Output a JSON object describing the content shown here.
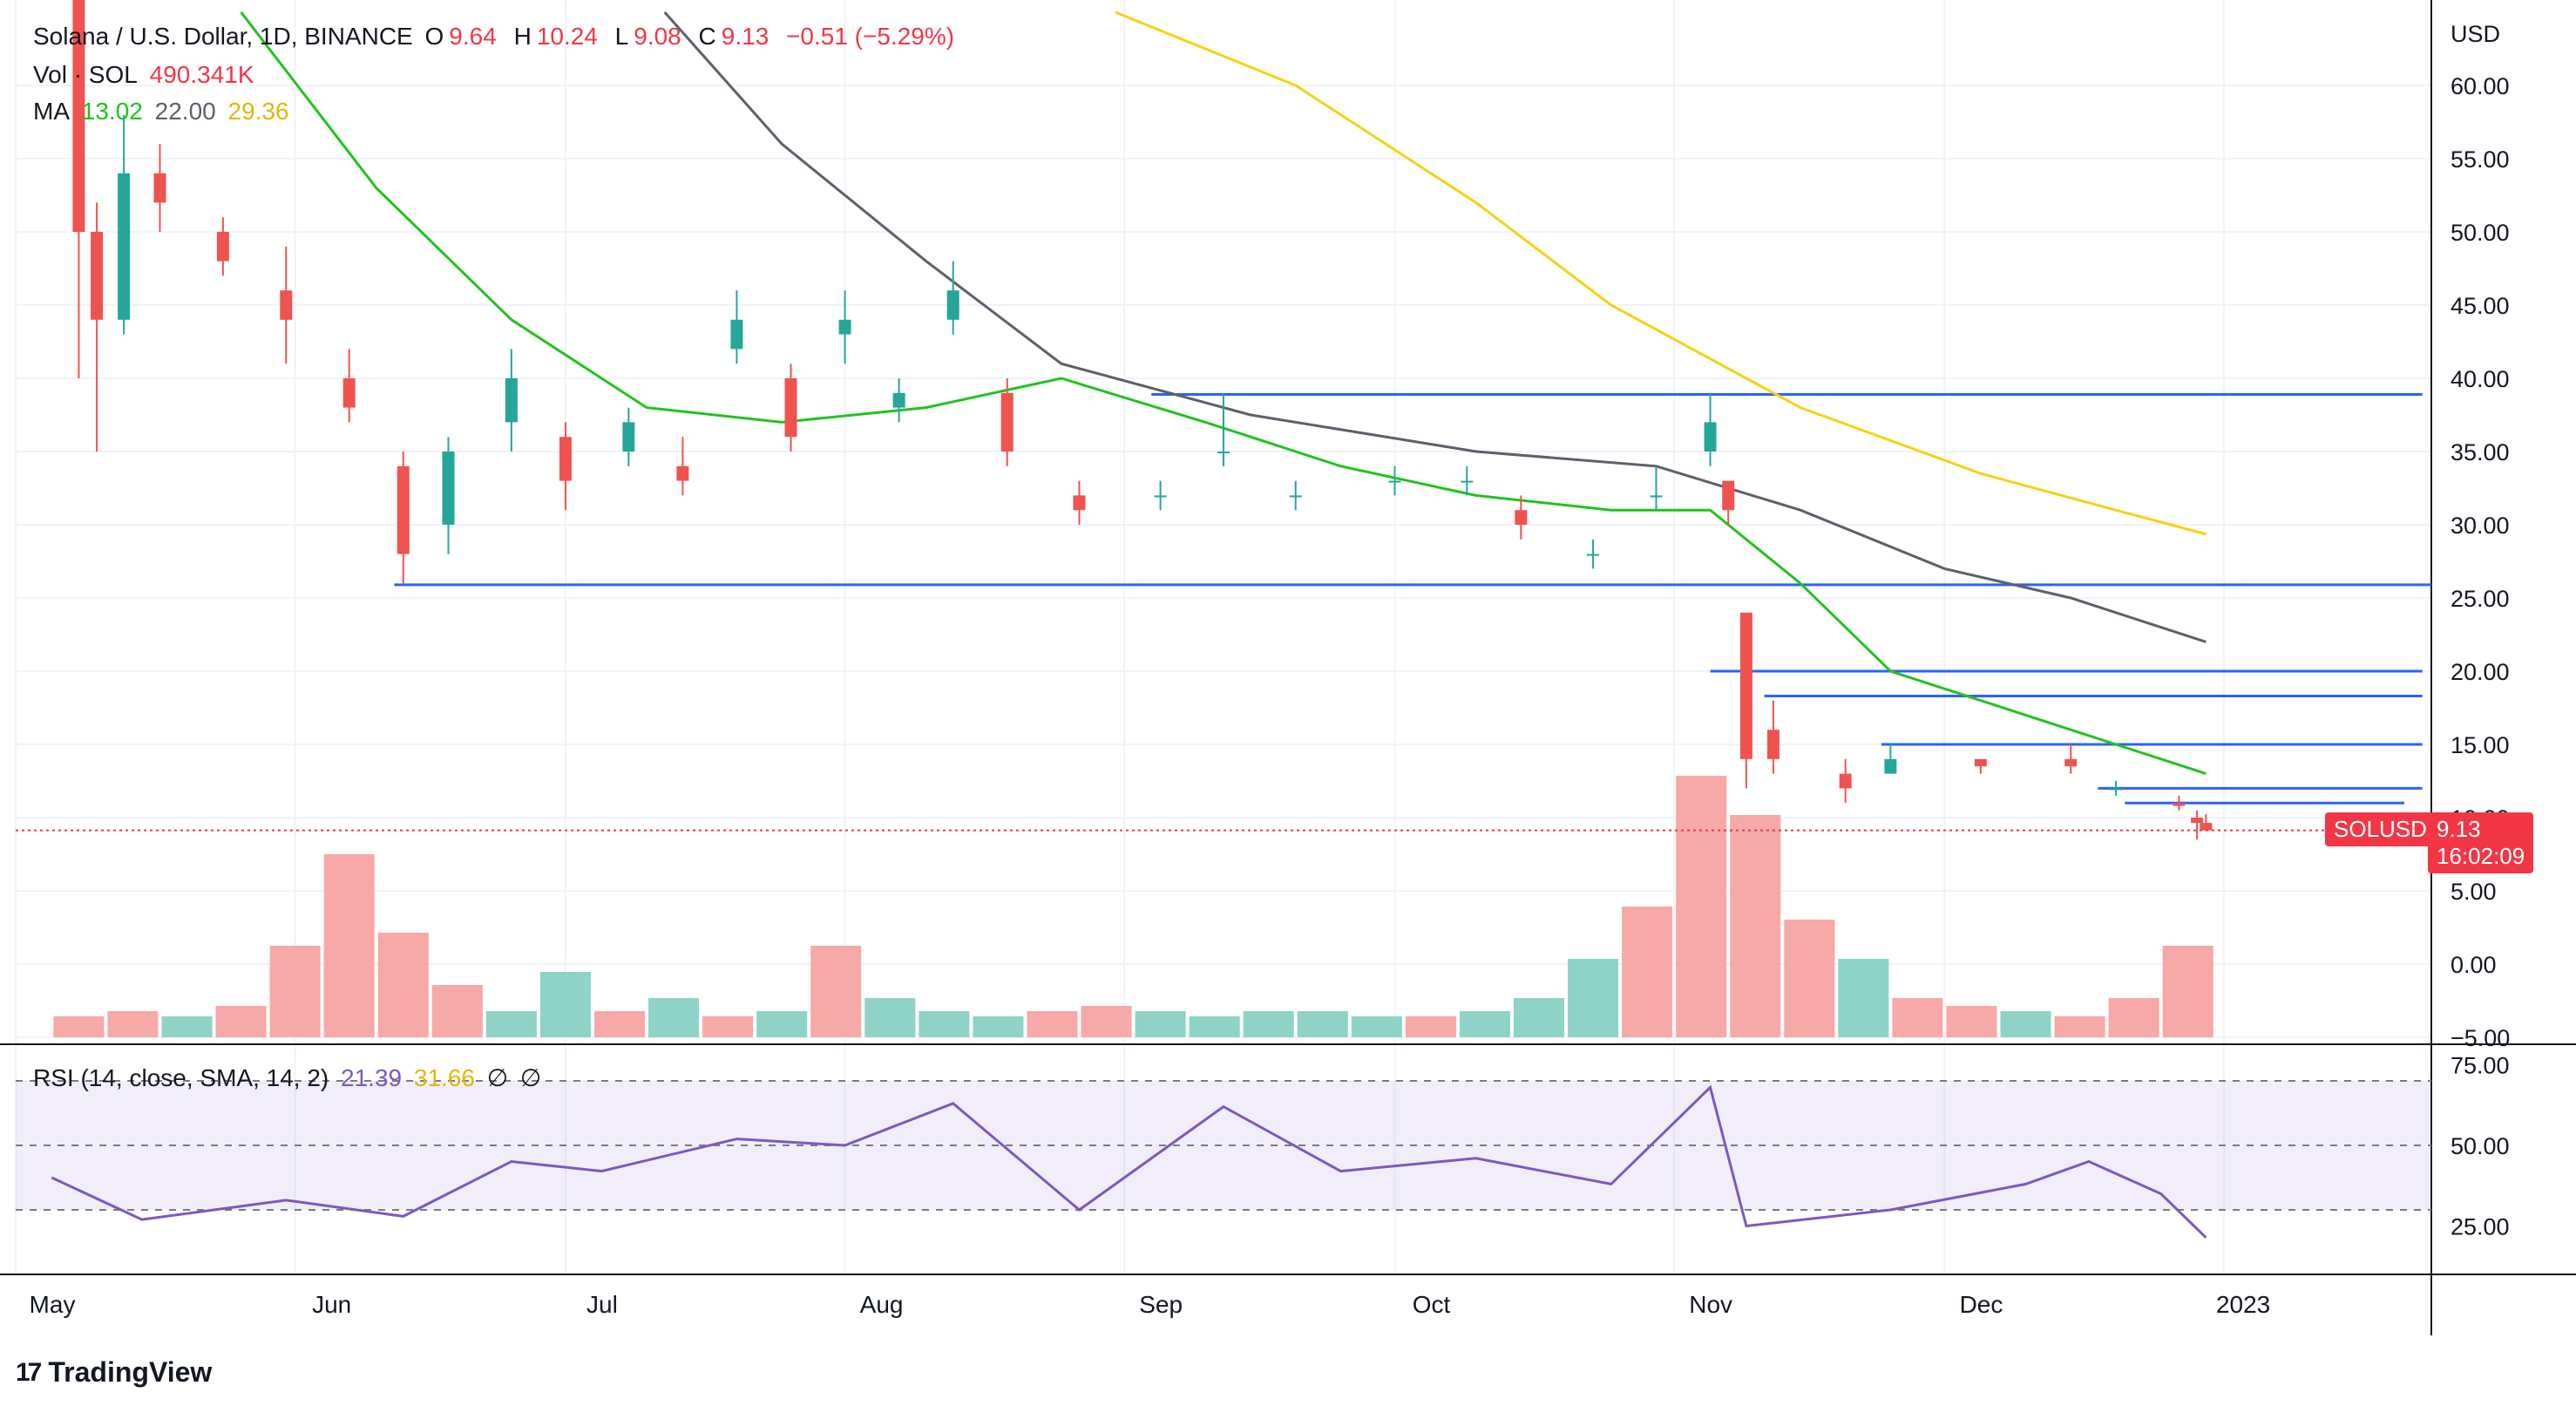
{
  "legend": {
    "symbol": "Solana / U.S. Dollar, 1D, BINANCE",
    "o_label": "O",
    "o_value": "9.64",
    "h_label": "H",
    "h_value": "10.24",
    "l_label": "L",
    "l_value": "9.08",
    "c_label": "C",
    "c_value": "9.13",
    "change": "−0.51 (−5.29%)",
    "vol_label": "Vol · SOL",
    "vol_value": "490.341K",
    "ma_label": "MA",
    "ma1": "13.02",
    "ma2": "22.00",
    "ma3": "29.36"
  },
  "rsi_legend": {
    "label": "RSI (14, close, SMA, 14, 2)",
    "rsi": "21.39",
    "sma": "31.66",
    "empty1": "∅",
    "empty2": "∅"
  },
  "price_axis": {
    "currency": "USD",
    "ticks": [
      "60.00",
      "55.00",
      "50.00",
      "45.00",
      "40.00",
      "35.00",
      "30.00",
      "25.00",
      "20.00",
      "15.00",
      "10.00",
      "5.00",
      "0.00",
      "−5.00"
    ]
  },
  "rsi_axis": {
    "ticks": [
      "75.00",
      "50.00",
      "25.00"
    ]
  },
  "time_axis": {
    "ticks": [
      "May",
      "Jun",
      "Jul",
      "Aug",
      "Sep",
      "Oct",
      "Nov",
      "Dec",
      "2023"
    ]
  },
  "last_price": {
    "symbol_tag": "SOLUSD",
    "price": "9.13",
    "countdown": "16:02:09"
  },
  "branding": {
    "name": "TradingView"
  },
  "colors": {
    "up": "#26a69a",
    "down": "#ef5350",
    "ma_green": "#22c21f",
    "ma_gray": "#5d606b",
    "ma_yellow": "#f5d311",
    "hline": "#2962ff",
    "rsi": "#7e57c2",
    "rsi_sma": "#f5d311",
    "last": "#f23645"
  },
  "chart_data": {
    "type": "candlestick",
    "title": "Solana / U.S. Dollar, 1D, BINANCE",
    "x_range": [
      "2022-05-01",
      "2023-01-24"
    ],
    "y_range": [
      -5,
      65
    ],
    "candles_sampled": [
      {
        "date": "2022-05-08",
        "o": 75,
        "h": 76,
        "l": 40,
        "c": 50
      },
      {
        "date": "2022-05-10",
        "o": 50,
        "h": 52,
        "l": 35,
        "c": 44
      },
      {
        "date": "2022-05-13",
        "o": 44,
        "h": 58,
        "l": 43,
        "c": 54
      },
      {
        "date": "2022-05-17",
        "o": 54,
        "h": 56,
        "l": 50,
        "c": 52
      },
      {
        "date": "2022-05-24",
        "o": 50,
        "h": 51,
        "l": 47,
        "c": 48
      },
      {
        "date": "2022-05-31",
        "o": 46,
        "h": 49,
        "l": 41,
        "c": 44
      },
      {
        "date": "2022-06-07",
        "o": 40,
        "h": 42,
        "l": 37,
        "c": 38
      },
      {
        "date": "2022-06-13",
        "o": 34,
        "h": 35,
        "l": 26,
        "c": 28
      },
      {
        "date": "2022-06-18",
        "o": 30,
        "h": 36,
        "l": 28,
        "c": 35
      },
      {
        "date": "2022-06-25",
        "o": 37,
        "h": 42,
        "l": 35,
        "c": 40
      },
      {
        "date": "2022-07-01",
        "o": 36,
        "h": 37,
        "l": 31,
        "c": 33
      },
      {
        "date": "2022-07-08",
        "o": 35,
        "h": 38,
        "l": 34,
        "c": 37
      },
      {
        "date": "2022-07-14",
        "o": 34,
        "h": 36,
        "l": 32,
        "c": 33
      },
      {
        "date": "2022-07-20",
        "o": 42,
        "h": 46,
        "l": 41,
        "c": 44
      },
      {
        "date": "2022-07-26",
        "o": 40,
        "h": 41,
        "l": 35,
        "c": 36
      },
      {
        "date": "2022-08-01",
        "o": 43,
        "h": 46,
        "l": 41,
        "c": 44
      },
      {
        "date": "2022-08-07",
        "o": 38,
        "h": 40,
        "l": 37,
        "c": 39
      },
      {
        "date": "2022-08-13",
        "o": 44,
        "h": 48,
        "l": 43,
        "c": 46
      },
      {
        "date": "2022-08-19",
        "o": 39,
        "h": 40,
        "l": 34,
        "c": 35
      },
      {
        "date": "2022-08-27",
        "o": 32,
        "h": 33,
        "l": 30,
        "c": 31
      },
      {
        "date": "2022-09-05",
        "o": 32,
        "h": 33,
        "l": 31,
        "c": 32
      },
      {
        "date": "2022-09-12",
        "o": 35,
        "h": 39,
        "l": 34,
        "c": 35
      },
      {
        "date": "2022-09-20",
        "o": 32,
        "h": 33,
        "l": 31,
        "c": 32
      },
      {
        "date": "2022-10-01",
        "o": 33,
        "h": 34,
        "l": 32,
        "c": 33
      },
      {
        "date": "2022-10-09",
        "o": 33,
        "h": 34,
        "l": 32,
        "c": 33
      },
      {
        "date": "2022-10-15",
        "o": 31,
        "h": 32,
        "l": 29,
        "c": 30
      },
      {
        "date": "2022-10-23",
        "o": 28,
        "h": 29,
        "l": 27,
        "c": 28
      },
      {
        "date": "2022-10-30",
        "o": 32,
        "h": 34,
        "l": 31,
        "c": 32
      },
      {
        "date": "2022-11-05",
        "o": 35,
        "h": 39,
        "l": 34,
        "c": 37
      },
      {
        "date": "2022-11-07",
        "o": 33,
        "h": 33,
        "l": 30,
        "c": 31
      },
      {
        "date": "2022-11-09",
        "o": 24,
        "h": 24,
        "l": 12,
        "c": 14
      },
      {
        "date": "2022-11-12",
        "o": 16,
        "h": 18,
        "l": 13,
        "c": 14
      },
      {
        "date": "2022-11-20",
        "o": 13,
        "h": 14,
        "l": 11,
        "c": 12
      },
      {
        "date": "2022-11-25",
        "o": 13,
        "h": 15,
        "l": 13,
        "c": 14
      },
      {
        "date": "2022-12-05",
        "o": 14,
        "h": 14,
        "l": 13,
        "c": 13.5
      },
      {
        "date": "2022-12-15",
        "o": 14,
        "h": 15,
        "l": 13,
        "c": 13.5
      },
      {
        "date": "2022-12-20",
        "o": 12,
        "h": 12.5,
        "l": 11.5,
        "c": 12
      },
      {
        "date": "2022-12-27",
        "o": 11,
        "h": 11.5,
        "l": 10.5,
        "c": 10.8
      },
      {
        "date": "2022-12-29",
        "o": 10,
        "h": 10.5,
        "l": 8.5,
        "c": 9.64
      },
      {
        "date": "2022-12-30",
        "o": 9.64,
        "h": 10.24,
        "l": 9.08,
        "c": 9.13
      }
    ],
    "moving_averages": [
      {
        "name": "MA",
        "value": "13.02",
        "points": [
          [
            "2022-05-26",
            "65"
          ],
          [
            "2022-06-10",
            "53"
          ],
          [
            "2022-06-25",
            "44"
          ],
          [
            "2022-07-10",
            "38"
          ],
          [
            "2022-07-25",
            "37"
          ],
          [
            "2022-08-10",
            "38"
          ],
          [
            "2022-08-25",
            "40"
          ],
          [
            "2022-09-10",
            "37"
          ],
          [
            "2022-09-25",
            "34"
          ],
          [
            "2022-10-10",
            "32"
          ],
          [
            "2022-10-25",
            "31"
          ],
          [
            "2022-11-05",
            "31"
          ],
          [
            "2022-11-15",
            "26"
          ],
          [
            "2022-11-25",
            "20"
          ],
          [
            "2022-12-10",
            "17"
          ],
          [
            "2022-12-20",
            "15"
          ],
          [
            "2022-12-30",
            "13"
          ]
        ]
      },
      {
        "name": "MA",
        "value": "22.00",
        "points": [
          [
            "2022-07-12",
            "65"
          ],
          [
            "2022-07-25",
            "56"
          ],
          [
            "2022-08-10",
            "48"
          ],
          [
            "2022-08-25",
            "41"
          ],
          [
            "2022-09-15",
            "37.5"
          ],
          [
            "2022-10-10",
            "35"
          ],
          [
            "2022-10-30",
            "34"
          ],
          [
            "2022-11-15",
            "31"
          ],
          [
            "2022-12-01",
            "27"
          ],
          [
            "2022-12-15",
            "25"
          ],
          [
            "2022-12-30",
            "22"
          ]
        ]
      },
      {
        "name": "MA",
        "value": "29.36",
        "points": [
          [
            "2022-08-31",
            "65"
          ],
          [
            "2022-09-20",
            "60"
          ],
          [
            "2022-10-10",
            "52"
          ],
          [
            "2022-10-25",
            "45"
          ],
          [
            "2022-11-15",
            "38"
          ],
          [
            "2022-12-05",
            "33.5"
          ],
          [
            "2022-12-20",
            "31"
          ],
          [
            "2022-12-30",
            "29.36"
          ]
        ]
      }
    ],
    "horizontal_levels": [
      {
        "from": "2022-09-04",
        "to": "2023-01-23",
        "y": 38.9
      },
      {
        "from": "2022-06-12",
        "to": "2023-01-24",
        "y": 25.9
      },
      {
        "from": "2022-11-05",
        "to": "2023-01-23",
        "y": 20.0
      },
      {
        "from": "2022-11-11",
        "to": "2023-01-23",
        "y": 18.3
      },
      {
        "from": "2022-11-24",
        "to": "2023-01-23",
        "y": 15.0
      },
      {
        "from": "2022-12-18",
        "to": "2023-01-23",
        "y": 12.0
      },
      {
        "from": "2022-12-21",
        "to": "2023-01-21",
        "y": 11.0
      }
    ],
    "volume_relative": [
      0.08,
      0.1,
      0.08,
      0.12,
      0.35,
      0.7,
      0.4,
      0.2,
      0.1,
      0.25,
      0.1,
      0.15,
      0.08,
      0.1,
      0.35,
      0.15,
      0.1,
      0.08,
      0.1,
      0.12,
      0.1,
      0.08,
      0.1,
      0.1,
      0.08,
      0.08,
      0.1,
      0.15,
      0.3,
      0.5,
      1.0,
      0.85,
      0.45,
      0.3,
      0.15,
      0.12,
      0.1,
      0.08,
      0.15,
      0.35
    ],
    "rsi": {
      "values": [
        [
          "2022-05-05",
          "40"
        ],
        [
          "2022-05-15",
          "27"
        ],
        [
          "2022-05-31",
          "33"
        ],
        [
          "2022-06-13",
          "28"
        ],
        [
          "2022-06-25",
          "45"
        ],
        [
          "2022-07-05",
          "42"
        ],
        [
          "2022-07-20",
          "52"
        ],
        [
          "2022-08-01",
          "50"
        ],
        [
          "2022-08-13",
          "63"
        ],
        [
          "2022-08-27",
          "30"
        ],
        [
          "2022-09-12",
          "62"
        ],
        [
          "2022-09-25",
          "42"
        ],
        [
          "2022-10-10",
          "46"
        ],
        [
          "2022-10-25",
          "38"
        ],
        [
          "2022-11-05",
          "68"
        ],
        [
          "2022-11-09",
          "25"
        ],
        [
          "2022-11-25",
          "30"
        ],
        [
          "2022-12-10",
          "38"
        ],
        [
          "2022-12-17",
          "45"
        ],
        [
          "2022-12-25",
          "35"
        ],
        [
          "2022-12-30",
          "21.39"
        ]
      ],
      "upper": 70,
      "lower": 30,
      "range": [
        10,
        80
      ]
    }
  }
}
